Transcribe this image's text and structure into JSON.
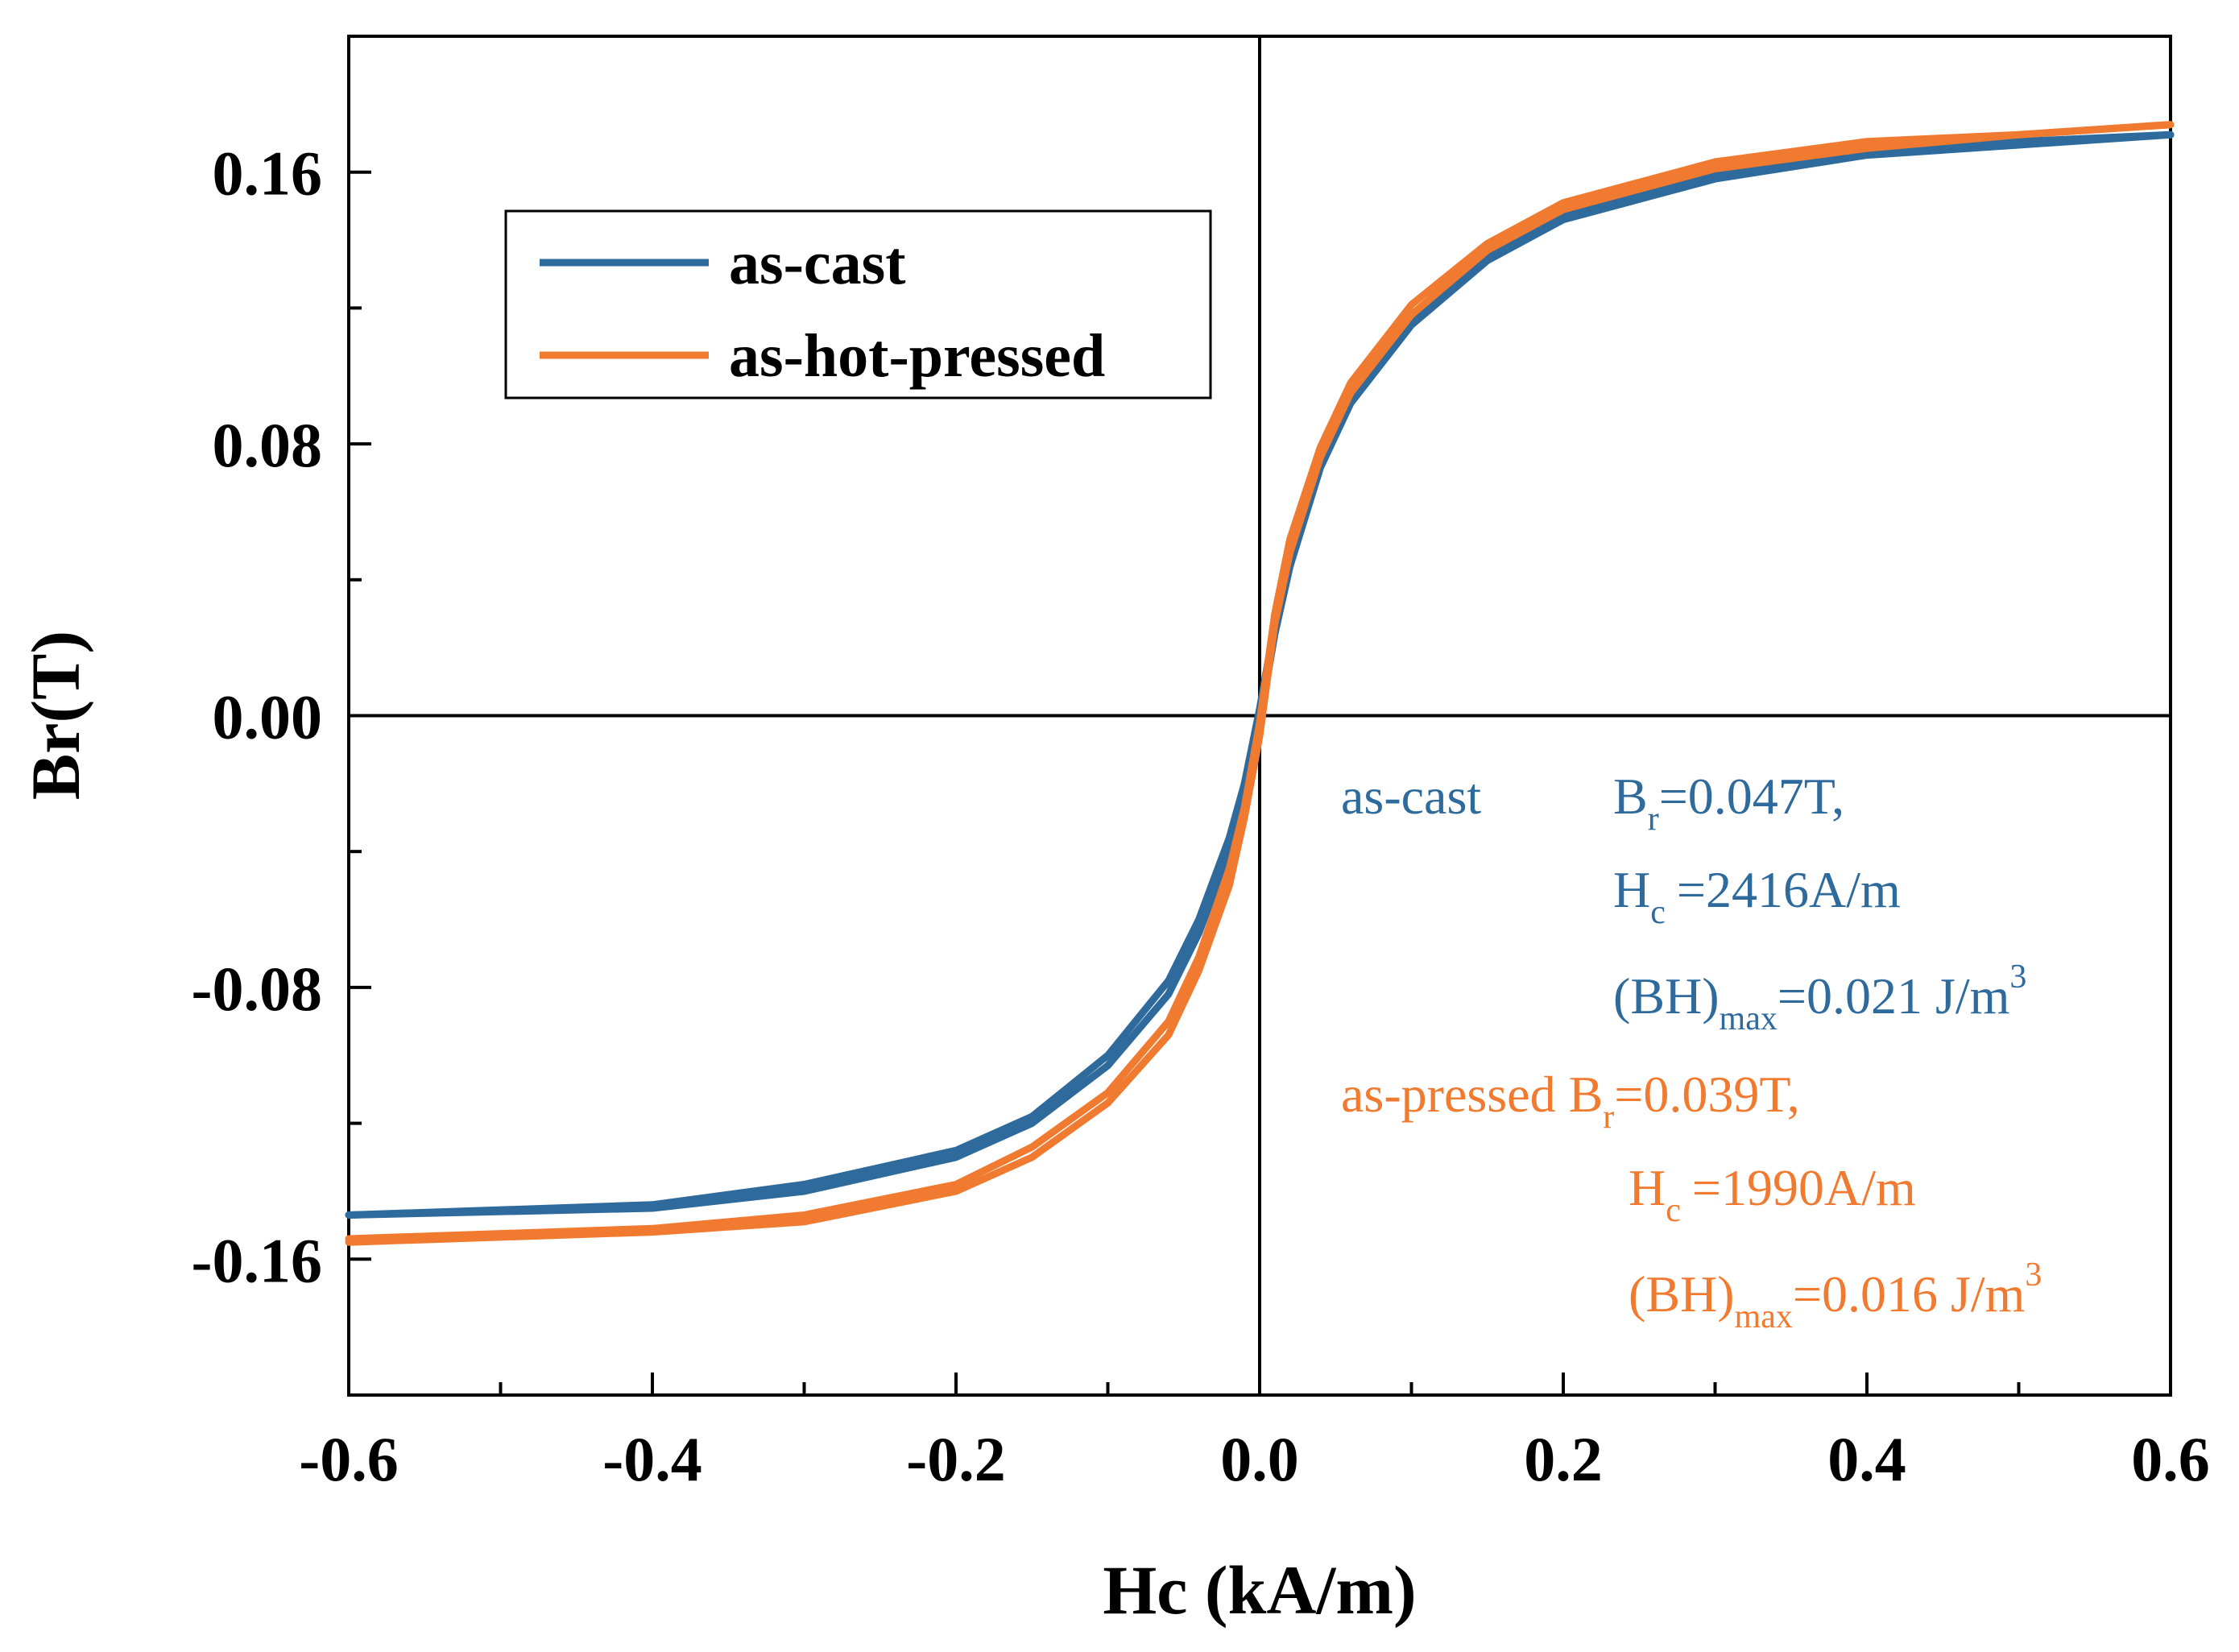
{
  "chart_data": {
    "type": "line",
    "title": "",
    "xlabel": "Hc (kA/m)",
    "ylabel": "Br(T)",
    "xlim": [
      -0.6,
      0.6
    ],
    "ylim": [
      -0.2,
      0.2
    ],
    "xticks": [
      -0.6,
      -0.4,
      -0.2,
      0.0,
      0.2,
      0.4,
      0.6
    ],
    "xtick_labels": [
      "-0.6",
      "-0.4",
      "-0.2",
      "0.0",
      "0.2",
      "0.4",
      "0.6"
    ],
    "yticks": [
      -0.16,
      -0.08,
      0.0,
      0.08,
      0.16
    ],
    "ytick_labels": [
      "-0.16",
      "-0.08",
      "0.00",
      "0.08",
      "0.16"
    ],
    "legend_position": "top-left",
    "series": [
      {
        "name": "as-cast",
        "color": "#2e6a9c",
        "upper_branch": [
          [
            -0.6,
            -0.147
          ],
          [
            -0.4,
            -0.144
          ],
          [
            -0.3,
            -0.138
          ],
          [
            -0.2,
            -0.128
          ],
          [
            -0.15,
            -0.118
          ],
          [
            -0.1,
            -0.1
          ],
          [
            -0.06,
            -0.078
          ],
          [
            -0.04,
            -0.06
          ],
          [
            -0.02,
            -0.036
          ],
          [
            -0.01,
            -0.02
          ],
          [
            0.0,
            0.002
          ],
          [
            0.01,
            0.027
          ],
          [
            0.02,
            0.047
          ],
          [
            0.04,
            0.075
          ],
          [
            0.06,
            0.094
          ],
          [
            0.1,
            0.117
          ],
          [
            0.15,
            0.136
          ],
          [
            0.2,
            0.148
          ],
          [
            0.3,
            0.16
          ],
          [
            0.4,
            0.166
          ],
          [
            0.5,
            0.169
          ],
          [
            0.6,
            0.171
          ]
        ],
        "lower_branch": [
          [
            0.6,
            0.171
          ],
          [
            0.5,
            0.168
          ],
          [
            0.4,
            0.165
          ],
          [
            0.3,
            0.158
          ],
          [
            0.2,
            0.146
          ],
          [
            0.15,
            0.134
          ],
          [
            0.1,
            0.115
          ],
          [
            0.06,
            0.092
          ],
          [
            0.04,
            0.073
          ],
          [
            0.02,
            0.044
          ],
          [
            0.01,
            0.024
          ],
          [
            0.0,
            -0.002
          ],
          [
            -0.01,
            -0.025
          ],
          [
            -0.02,
            -0.04
          ],
          [
            -0.04,
            -0.064
          ],
          [
            -0.06,
            -0.082
          ],
          [
            -0.1,
            -0.103
          ],
          [
            -0.15,
            -0.12
          ],
          [
            -0.2,
            -0.13
          ],
          [
            -0.3,
            -0.14
          ],
          [
            -0.4,
            -0.145
          ],
          [
            -0.6,
            -0.147
          ]
        ]
      },
      {
        "name": "as-hot-pressed",
        "color": "#f07a30",
        "upper_branch": [
          [
            -0.6,
            -0.154
          ],
          [
            -0.4,
            -0.151
          ],
          [
            -0.3,
            -0.147
          ],
          [
            -0.2,
            -0.138
          ],
          [
            -0.15,
            -0.127
          ],
          [
            -0.1,
            -0.111
          ],
          [
            -0.06,
            -0.09
          ],
          [
            -0.04,
            -0.071
          ],
          [
            -0.02,
            -0.045
          ],
          [
            -0.01,
            -0.027
          ],
          [
            0.0,
            -0.002
          ],
          [
            0.01,
            0.03
          ],
          [
            0.02,
            0.052
          ],
          [
            0.04,
            0.079
          ],
          [
            0.06,
            0.098
          ],
          [
            0.1,
            0.121
          ],
          [
            0.15,
            0.139
          ],
          [
            0.2,
            0.151
          ],
          [
            0.3,
            0.163
          ],
          [
            0.4,
            0.169
          ],
          [
            0.5,
            0.171
          ],
          [
            0.6,
            0.174
          ]
        ],
        "lower_branch": [
          [
            0.6,
            0.174
          ],
          [
            0.5,
            0.171
          ],
          [
            0.4,
            0.167
          ],
          [
            0.3,
            0.161
          ],
          [
            0.2,
            0.149
          ],
          [
            0.15,
            0.137
          ],
          [
            0.1,
            0.118
          ],
          [
            0.06,
            0.095
          ],
          [
            0.04,
            0.076
          ],
          [
            0.02,
            0.048
          ],
          [
            0.01,
            0.027
          ],
          [
            0.0,
            -0.006
          ],
          [
            -0.01,
            -0.03
          ],
          [
            -0.02,
            -0.05
          ],
          [
            -0.04,
            -0.075
          ],
          [
            -0.06,
            -0.094
          ],
          [
            -0.1,
            -0.114
          ],
          [
            -0.15,
            -0.13
          ],
          [
            -0.2,
            -0.14
          ],
          [
            -0.3,
            -0.149
          ],
          [
            -0.4,
            -0.152
          ],
          [
            -0.6,
            -0.155
          ]
        ]
      }
    ],
    "annotations": {
      "as_cast": {
        "label": "as-cast",
        "br_sym": "B",
        "br_sub": "r",
        "br_val": "=0.047T,",
        "hc_sym": "H",
        "hc_sub": "c",
        "hc_val": "=2416A/m",
        "bh_sym": "(BH)",
        "bh_sub": "max",
        "bh_val": "=0.021 J/m",
        "bh_sup": "3"
      },
      "as_pressed": {
        "label": "as-pressed",
        "br_sym": "B",
        "br_sub": "r",
        "br_val": "=0.039T,",
        "hc_sym": "H",
        "hc_sub": "c",
        "hc_val": "=1990A/m",
        "bh_sym": "(BH)",
        "bh_sub": "max",
        "bh_val": "=0.016 J/m",
        "bh_sup": "3"
      }
    }
  }
}
